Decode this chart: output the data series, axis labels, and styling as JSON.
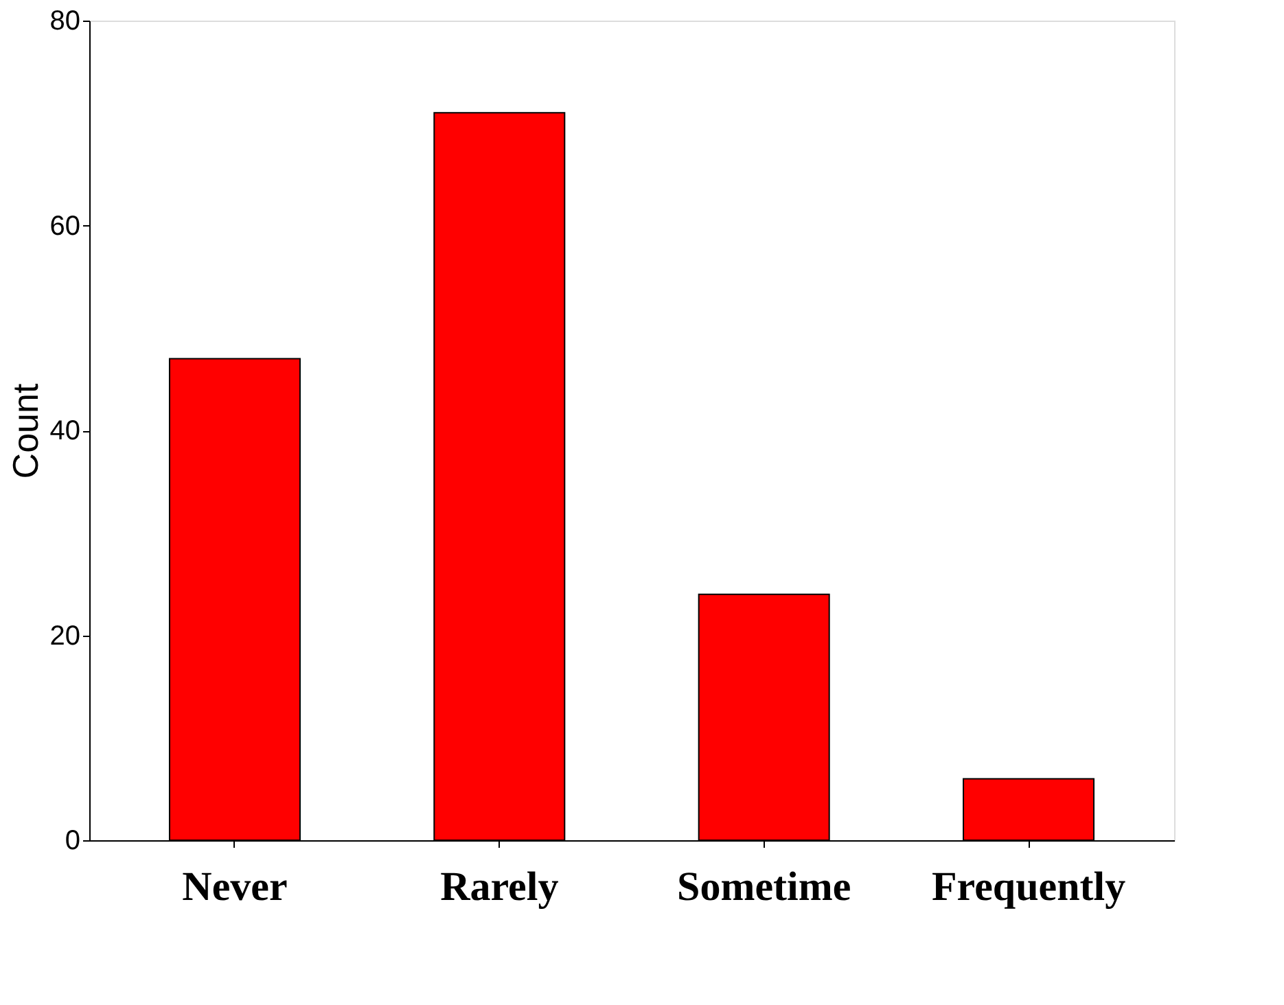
{
  "chart_data": {
    "type": "bar",
    "ylabel": "Count",
    "categories": [
      "Never",
      "Rarely",
      "Sometime",
      "Frequently"
    ],
    "values": [
      47,
      71,
      24,
      6
    ],
    "color": "#ff0000",
    "ylim": [
      0,
      80
    ],
    "yticks": [
      0,
      20,
      40,
      60,
      80
    ],
    "grid": false
  }
}
